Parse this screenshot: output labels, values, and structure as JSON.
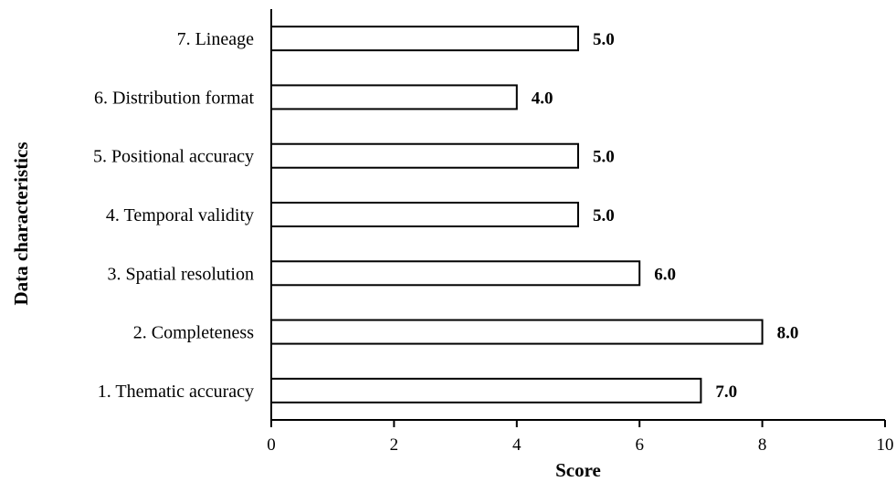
{
  "chart_data": {
    "type": "bar",
    "orientation": "horizontal",
    "categories": [
      "1. Thematic accuracy",
      "2. Completeness",
      "3. Spatial resolution",
      "4. Temporal validity",
      "5. Positional accuracy",
      "6. Distribution format",
      "7. Lineage"
    ],
    "values": [
      7.0,
      8.0,
      6.0,
      5.0,
      5.0,
      4.0,
      5.0
    ],
    "value_labels": [
      "7.0",
      "8.0",
      "6.0",
      "5.0",
      "5.0",
      "4.0",
      "5.0"
    ],
    "xlabel": "Score",
    "ylabel": "Data characteristics",
    "xlim": [
      0,
      10
    ],
    "xticks": [
      "0",
      "2",
      "4",
      "6",
      "8",
      "10"
    ],
    "grid": false,
    "bar_fill": "#ffffff",
    "bar_stroke": "#000000"
  }
}
